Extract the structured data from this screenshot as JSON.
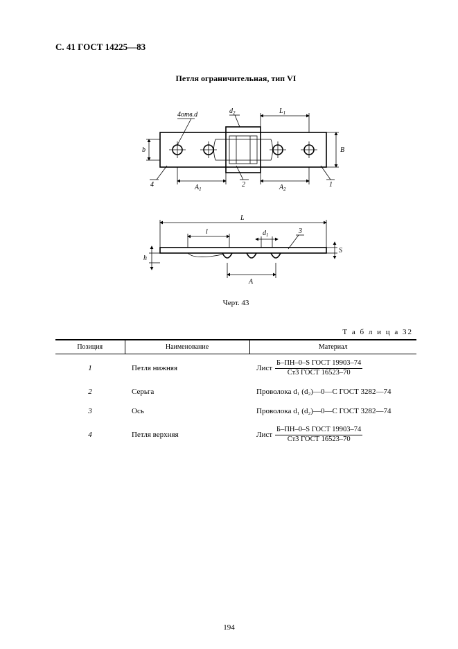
{
  "page": {
    "header": "С. 41 ГОСТ 14225—83",
    "title": "Петля ограничительная, тип VI",
    "drawing_caption": "Черт. 43",
    "page_number": "194"
  },
  "drawing": {
    "top": {
      "note_4holes": "4отв.d",
      "dim_d2": "d₂",
      "dim_L1": "L₁",
      "dim_b": "b",
      "dim_B": "B",
      "dim_A1": "A₁",
      "dim_A2": "A₂",
      "leader_1": "1",
      "leader_2": "2",
      "leader_4": "4"
    },
    "bottom": {
      "dim_Lfull": "L",
      "dim_l": "l",
      "dim_d1": "d₁",
      "dim_A": "A",
      "dim_h": "h",
      "dim_S": "S",
      "leader_3": "3"
    }
  },
  "table": {
    "label": "Т а б л и ц а  32",
    "columns": {
      "pos": "Позиция",
      "name": "Наименование",
      "material": "Материал"
    },
    "rows": [
      {
        "pos": "1",
        "name": "Петля нижняя",
        "material": {
          "prefix": "Лист",
          "frac_num": "Б–ПН–0–S ГОСТ 19903–74",
          "frac_den": "Ст3  ГОСТ 16523–70"
        }
      },
      {
        "pos": "2",
        "name": "Серьга",
        "material": {
          "plain": "Проволока d₁ (d₂)—0—С ГОСТ 3282—74"
        }
      },
      {
        "pos": "3",
        "name": "Ось",
        "material": {
          "plain": "Проволока d₁ (d₂)—0—С ГОСТ 3282—74"
        }
      },
      {
        "pos": "4",
        "name": "Петля верхняя",
        "material": {
          "prefix": "Лист",
          "frac_num": "Б–ПН–0–S ГОСТ 19903–74",
          "frac_den": "Ст3  ГОСТ 16523–70"
        }
      }
    ]
  },
  "style": {
    "page_bg": "#ffffff",
    "ink": "#000000",
    "font_family": "Times New Roman",
    "header_fontsize_pt": 13,
    "title_fontsize_pt": 12,
    "body_fontsize_pt": 11,
    "table_header_fontsize_pt": 10
  }
}
